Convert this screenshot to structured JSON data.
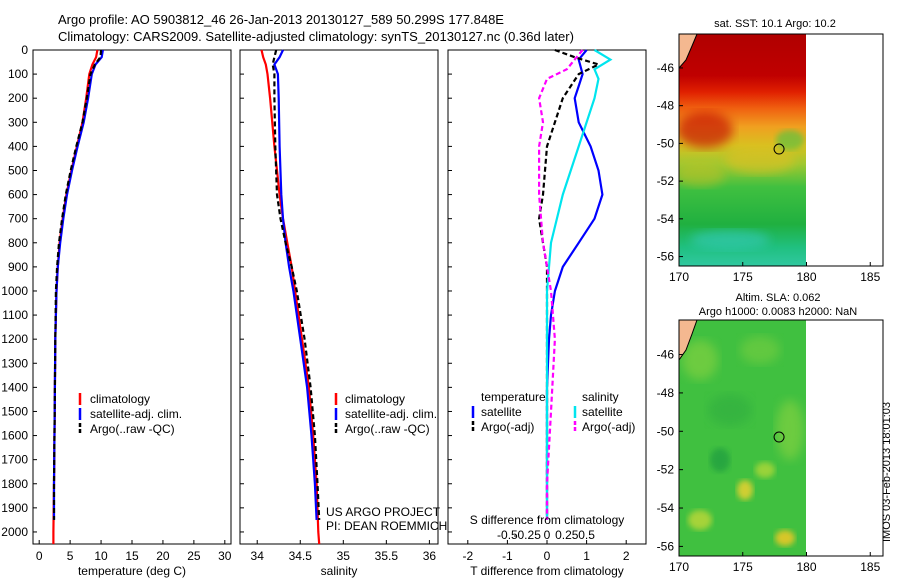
{
  "header": {
    "title_line1": "Argo profile: AO 5903812_46 26-Jan-2013 20130127_589 50.299S 177.848E",
    "title_line2": "Climatology: CARS2009. Satellite-adjusted climatology: synTS_20130127.nc (0.36d later)"
  },
  "depth_axis": {
    "ylim": [
      0,
      2050
    ],
    "ticks": [
      0,
      100,
      200,
      300,
      400,
      500,
      600,
      700,
      800,
      900,
      1000,
      1100,
      1200,
      1300,
      1400,
      1500,
      1600,
      1700,
      1800,
      1900,
      2000
    ]
  },
  "colors": {
    "climatology": "#ff0000",
    "satellite": "#0000ff",
    "argo": "#000000",
    "sat_salinity": "#00e5ee",
    "argo_salinity": "#ff00ff"
  },
  "chart_data": [
    {
      "type": "line",
      "xlabel": "temperature (deg C)",
      "xlim": [
        -1,
        31
      ],
      "xticks": [
        0,
        5,
        10,
        15,
        20,
        25,
        30
      ],
      "legend": [
        "climatology",
        "satellite-adj. clim.",
        "Argo(..raw -QC)"
      ],
      "series": [
        {
          "name": "climatology",
          "color": "#ff0000",
          "depth": [
            0,
            30,
            60,
            100,
            200,
            300,
            400,
            500,
            600,
            700,
            800,
            900,
            1000,
            1200,
            1500,
            1800,
            2000,
            2050
          ],
          "values": [
            9.4,
            9.2,
            8.6,
            8.1,
            7.6,
            7.0,
            6.1,
            5.2,
            4.4,
            3.8,
            3.3,
            3.0,
            2.8,
            2.6,
            2.5,
            2.4,
            2.3,
            2.3
          ]
        },
        {
          "name": "satellite-adj. clim.",
          "color": "#0000ff",
          "depth": [
            0,
            30,
            60,
            100,
            200,
            300,
            400,
            500,
            600,
            700,
            800,
            900,
            1000,
            1200,
            1500,
            1800,
            1950
          ],
          "values": [
            10.3,
            10.1,
            9.1,
            8.5,
            7.9,
            7.2,
            6.2,
            5.3,
            4.5,
            3.9,
            3.4,
            3.0,
            2.8,
            2.6,
            2.5,
            2.4,
            2.4
          ]
        },
        {
          "name": "Argo(..raw -QC)",
          "color": "#000000",
          "dash": true,
          "depth": [
            0,
            30,
            60,
            100,
            200,
            300,
            400,
            500,
            600,
            700,
            800,
            900,
            1000,
            1200,
            1500,
            1800,
            1950
          ],
          "values": [
            10.0,
            9.9,
            9.0,
            8.3,
            7.7,
            7.0,
            6.0,
            5.1,
            4.3,
            3.7,
            3.2,
            2.9,
            2.7,
            2.6,
            2.5,
            2.4,
            2.4
          ]
        }
      ]
    },
    {
      "type": "line",
      "xlabel": "salinity",
      "xlim": [
        33.8,
        36.1
      ],
      "xticks": [
        34,
        34.5,
        35,
        35.5,
        36
      ],
      "legend": [
        "climatology",
        "satellite-adj. clim.",
        "Argo(..raw -QC)"
      ],
      "annotation": [
        "US ARGO PROJECT",
        "PI: DEAN ROEMMICH"
      ],
      "series": [
        {
          "name": "climatology",
          "color": "#ff0000",
          "depth": [
            0,
            30,
            60,
            100,
            200,
            400,
            600,
            700,
            800,
            900,
            1000,
            1200,
            1400,
            1600,
            1800,
            2000,
            2050
          ],
          "values": [
            34.05,
            34.07,
            34.1,
            34.12,
            34.15,
            34.2,
            34.26,
            34.3,
            34.35,
            34.4,
            34.44,
            34.52,
            34.6,
            34.65,
            34.69,
            34.71,
            34.72
          ]
        },
        {
          "name": "satellite-adj. clim.",
          "color": "#0000ff",
          "depth": [
            0,
            30,
            60,
            100,
            200,
            400,
            600,
            700,
            800,
            900,
            1000,
            1200,
            1400,
            1600,
            1800,
            1950
          ],
          "values": [
            34.3,
            34.26,
            34.2,
            34.24,
            34.25,
            34.26,
            34.28,
            34.3,
            34.33,
            34.37,
            34.42,
            34.5,
            34.58,
            34.63,
            34.67,
            34.69
          ]
        },
        {
          "name": "Argo(..raw -QC)",
          "color": "#000000",
          "dash": true,
          "depth": [
            0,
            30,
            60,
            100,
            200,
            400,
            600,
            700,
            800,
            900,
            1000,
            1200,
            1400,
            1600,
            1800,
            1950
          ],
          "values": [
            34.22,
            34.2,
            34.18,
            34.2,
            34.2,
            34.21,
            34.23,
            34.27,
            34.33,
            34.4,
            34.46,
            34.55,
            34.62,
            34.67,
            34.7,
            34.72
          ]
        }
      ]
    },
    {
      "type": "line",
      "xlabel": "T difference from climatology",
      "xlabel_top": "S difference from climatology",
      "xlim": [
        -2.5,
        2.5
      ],
      "xticks": [
        -2,
        -1,
        0,
        1,
        2
      ],
      "xticks_s": [
        -0.5,
        -0.25,
        0,
        0.25,
        0.5
      ],
      "legend_headers": [
        "temperature",
        "salinity"
      ],
      "legend": [
        "satellite",
        "Argo(-adj)",
        "satellite",
        "Argo(-adj)"
      ],
      "series": [
        {
          "name": "temperature satellite",
          "color": "#0000ff",
          "depth": [
            0,
            40,
            100,
            150,
            200,
            300,
            400,
            500,
            600,
            700,
            800,
            900,
            1000,
            1100,
            1200,
            1400,
            1600,
            1800,
            1950
          ],
          "values": [
            1.0,
            0.8,
            0.9,
            0.8,
            0.7,
            0.8,
            1.1,
            1.3,
            1.4,
            1.2,
            0.8,
            0.4,
            0.2,
            0.1,
            0.05,
            0.0,
            0.0,
            0.0,
            0.0
          ]
        },
        {
          "name": "temperature Argo(-adj)",
          "color": "#000000",
          "dash": true,
          "depth": [
            0,
            30,
            60,
            100,
            200,
            400,
            600,
            700,
            800,
            900,
            1000,
            1200,
            1500,
            1800,
            1950
          ],
          "values": [
            0.2,
            0.7,
            1.3,
            0.8,
            0.4,
            0.0,
            -0.1,
            -0.2,
            -0.1,
            0.0,
            0.0,
            0.0,
            0.0,
            0.0,
            0.0
          ]
        },
        {
          "name": "salinity satellite",
          "color": "#00e5ee",
          "depth": [
            0,
            40,
            80,
            120,
            200,
            400,
            600,
            800,
            1000,
            1200,
            1500,
            1800,
            1950
          ],
          "values": [
            0.6,
            0.8,
            0.6,
            0.65,
            0.6,
            0.4,
            0.2,
            0.05,
            0.0,
            0.0,
            0.0,
            0.0,
            0.0
          ]
        },
        {
          "name": "salinity Argo(-adj)",
          "color": "#ff00ff",
          "dash": true,
          "depth": [
            0,
            40,
            80,
            120,
            200,
            300,
            400,
            600,
            800,
            1000,
            1200,
            1500,
            1800,
            1950
          ],
          "values": [
            0.45,
            0.35,
            0.25,
            0.0,
            -0.1,
            -0.05,
            -0.1,
            -0.1,
            -0.05,
            0.05,
            0.1,
            0.05,
            0.0,
            0.0
          ]
        }
      ]
    },
    {
      "type": "heatmap",
      "title": "sat. SST: 10.1  Argo: 10.2",
      "xticks": [
        170,
        175,
        180,
        185
      ],
      "yticks": [
        -46,
        -48,
        -50,
        -52,
        -54,
        -56
      ],
      "xlim": [
        170,
        186
      ],
      "ylim": [
        -56.5,
        -44.2
      ],
      "data_xlim": [
        170,
        180
      ],
      "argo_location": {
        "lon": 177.848,
        "lat": -50.299
      }
    },
    {
      "type": "heatmap",
      "title_line1": "Altim. SLA: 0.062",
      "title_line2": "Argo h1000: 0.0083 h2000: NaN",
      "xticks": [
        170,
        175,
        180,
        185
      ],
      "yticks": [
        -46,
        -48,
        -50,
        -52,
        -54,
        -56
      ],
      "xlim": [
        170,
        186
      ],
      "ylim": [
        -56.5,
        -44.2
      ],
      "data_xlim": [
        170,
        180
      ],
      "argo_location": {
        "lon": 177.848,
        "lat": -50.299
      }
    }
  ],
  "footer_vertical": "IMOS 03-Feb-2013 18:01:03"
}
